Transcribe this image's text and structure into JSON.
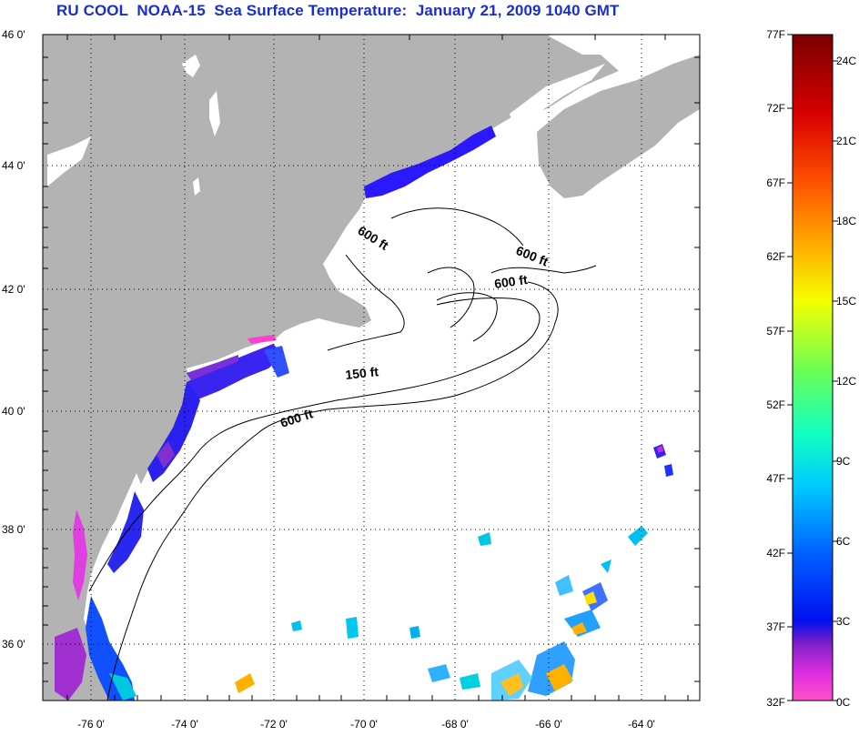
{
  "title": "RU COOL  NOAA-15  Sea Surface Temperature:  January 21, 2009 1040 GMT",
  "map": {
    "lat_ticks": [
      "46 0'",
      "44 0'",
      "42 0'",
      "40 0'",
      "38 0'",
      "36 0'"
    ],
    "lon_ticks": [
      "-76 0'",
      "-74 0'",
      "-72 0'",
      "-70 0'",
      "-68 0'",
      "-66 0'",
      "-64 0'"
    ],
    "land_color": "#b3b3b3",
    "ocean_color": "#ffffff",
    "contour_labels": [
      {
        "text": "600 ft",
        "rotate": 32
      },
      {
        "text": "600 ft",
        "rotate": 22
      },
      {
        "text": "600 ft",
        "rotate": -8
      },
      {
        "text": "150 ft",
        "rotate": -6
      },
      {
        "text": "600 ft",
        "rotate": -18
      }
    ]
  },
  "colorbar": {
    "fahrenheit_labels": [
      "77F",
      "72F",
      "67F",
      "62F",
      "57F",
      "52F",
      "47F",
      "42F",
      "37F",
      "32F"
    ],
    "celsius_labels": [
      "24C",
      "21C",
      "18C",
      "15C",
      "12C",
      "9C",
      "6C",
      "3C",
      "0C"
    ],
    "colors": [
      "#7a0000",
      "#d00000",
      "#ff2000",
      "#ff7a00",
      "#ffd000",
      "#f0ff00",
      "#80ff40",
      "#20ffa0",
      "#00f0ff",
      "#0090ff",
      "#0030ff",
      "#2000e0",
      "#9020c0",
      "#ff40e0",
      "#ff60c0"
    ]
  }
}
